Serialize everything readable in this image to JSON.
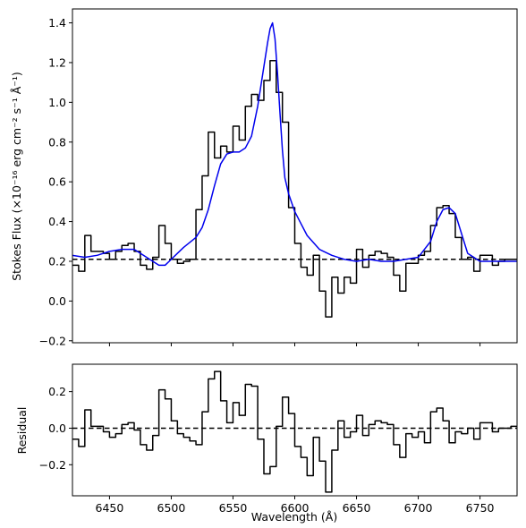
{
  "chart_data": [
    {
      "type": "line",
      "panel": "top",
      "title": "",
      "xlabel": "",
      "ylabel": "Stokes Flux (×10⁻¹⁶ erg cm⁻² s⁻¹ Å⁻¹)",
      "xlim": [
        6420,
        6780
      ],
      "ylim": [
        -0.21,
        1.47
      ],
      "xticks": [
        6450,
        6500,
        6550,
        6600,
        6650,
        6700,
        6750
      ],
      "yticks": [
        -0.2,
        0.0,
        0.2,
        0.4,
        0.6,
        0.8,
        1.0,
        1.2,
        1.4
      ],
      "ytick_labels": [
        "−0.2",
        "0.0",
        "0.2",
        "0.4",
        "0.6",
        "0.8",
        "1.0",
        "1.2",
        "1.4"
      ],
      "grid": false,
      "reference_line": {
        "y": 0.21,
        "style": "dashed",
        "color": "#000000"
      },
      "series": [
        {
          "style": "step",
          "color": "#000000",
          "x": [
            6420,
            6425,
            6430,
            6435,
            6440,
            6445,
            6450,
            6455,
            6460,
            6465,
            6470,
            6475,
            6480,
            6485,
            6490,
            6495,
            6500,
            6505,
            6510,
            6515,
            6520,
            6525,
            6530,
            6535,
            6540,
            6545,
            6550,
            6555,
            6560,
            6565,
            6570,
            6575,
            6580,
            6585,
            6590,
            6595,
            6600,
            6605,
            6610,
            6615,
            6620,
            6625,
            6630,
            6635,
            6640,
            6645,
            6650,
            6655,
            6660,
            6665,
            6670,
            6675,
            6680,
            6685,
            6690,
            6695,
            6700,
            6705,
            6710,
            6715,
            6720,
            6725,
            6730,
            6735,
            6740,
            6745,
            6750,
            6755,
            6760,
            6765,
            6770,
            6775,
            6780
          ],
          "y": [
            0.18,
            0.15,
            0.33,
            0.25,
            0.25,
            0.24,
            0.21,
            0.25,
            0.28,
            0.29,
            0.25,
            0.18,
            0.16,
            0.22,
            0.38,
            0.29,
            0.21,
            0.19,
            0.2,
            0.21,
            0.46,
            0.63,
            0.85,
            0.72,
            0.78,
            0.75,
            0.88,
            0.81,
            0.98,
            1.04,
            1.01,
            1.11,
            1.21,
            1.05,
            0.9,
            0.47,
            0.29,
            0.17,
            0.13,
            0.23,
            0.05,
            -0.08,
            0.12,
            0.04,
            0.12,
            0.09,
            0.26,
            0.17,
            0.23,
            0.25,
            0.24,
            0.22,
            0.13,
            0.05,
            0.19,
            0.19,
            0.23,
            0.25,
            0.38,
            0.47,
            0.48,
            0.44,
            0.32,
            0.21,
            0.22,
            0.15,
            0.23,
            0.23,
            0.18,
            0.2,
            0.21,
            0.21,
            0.21
          ]
        },
        {
          "style": "line",
          "color": "#0000ee",
          "x": [
            6420,
            6430,
            6440,
            6450,
            6460,
            6470,
            6480,
            6490,
            6495,
            6500,
            6505,
            6510,
            6520,
            6525,
            6530,
            6535,
            6540,
            6545,
            6550,
            6555,
            6560,
            6565,
            6570,
            6575,
            6578,
            6580,
            6582,
            6584,
            6586,
            6588,
            6590,
            6592,
            6595,
            6600,
            6605,
            6610,
            6620,
            6630,
            6640,
            6650,
            6660,
            6670,
            6680,
            6690,
            6700,
            6710,
            6715,
            6720,
            6725,
            6730,
            6735,
            6740,
            6750,
            6760,
            6770,
            6780
          ],
          "y": [
            0.23,
            0.22,
            0.23,
            0.25,
            0.26,
            0.26,
            0.22,
            0.18,
            0.18,
            0.21,
            0.24,
            0.27,
            0.32,
            0.37,
            0.46,
            0.58,
            0.69,
            0.74,
            0.75,
            0.75,
            0.77,
            0.83,
            0.98,
            1.18,
            1.3,
            1.37,
            1.4,
            1.32,
            1.15,
            0.95,
            0.76,
            0.62,
            0.54,
            0.45,
            0.39,
            0.33,
            0.26,
            0.23,
            0.21,
            0.2,
            0.21,
            0.2,
            0.2,
            0.21,
            0.22,
            0.3,
            0.4,
            0.46,
            0.47,
            0.44,
            0.34,
            0.24,
            0.2,
            0.2,
            0.2,
            0.2
          ]
        }
      ]
    },
    {
      "type": "line",
      "panel": "bottom",
      "title": "",
      "xlabel": "Wavelength (Å)",
      "ylabel": "Residual",
      "xlim": [
        6420,
        6780
      ],
      "ylim": [
        -0.37,
        0.35
      ],
      "xticks": [
        6450,
        6500,
        6550,
        6600,
        6650,
        6700,
        6750
      ],
      "xtick_labels": [
        "6450",
        "6500",
        "6550",
        "6600",
        "6650",
        "6700",
        "6750"
      ],
      "yticks": [
        -0.2,
        0.0,
        0.2
      ],
      "ytick_labels": [
        "−0.2",
        "0.0",
        "0.2"
      ],
      "grid": false,
      "reference_line": {
        "y": 0.0,
        "style": "dashed",
        "color": "#000000"
      },
      "series": [
        {
          "style": "step",
          "color": "#000000",
          "x": [
            6420,
            6425,
            6430,
            6435,
            6440,
            6445,
            6450,
            6455,
            6460,
            6465,
            6470,
            6475,
            6480,
            6485,
            6490,
            6495,
            6500,
            6505,
            6510,
            6515,
            6520,
            6525,
            6530,
            6535,
            6540,
            6545,
            6550,
            6555,
            6560,
            6565,
            6570,
            6575,
            6580,
            6585,
            6590,
            6595,
            6600,
            6605,
            6610,
            6615,
            6620,
            6625,
            6630,
            6635,
            6640,
            6645,
            6650,
            6655,
            6660,
            6665,
            6670,
            6675,
            6680,
            6685,
            6690,
            6695,
            6700,
            6705,
            6710,
            6715,
            6720,
            6725,
            6730,
            6735,
            6740,
            6745,
            6750,
            6755,
            6760,
            6765,
            6770,
            6775,
            6780
          ],
          "y": [
            -0.06,
            -0.1,
            0.1,
            0.01,
            0.01,
            -0.02,
            -0.05,
            -0.03,
            0.02,
            0.03,
            -0.01,
            -0.09,
            -0.12,
            -0.04,
            0.21,
            0.16,
            0.04,
            -0.03,
            -0.05,
            -0.07,
            -0.09,
            0.09,
            0.27,
            0.31,
            0.15,
            0.03,
            0.14,
            0.07,
            0.24,
            0.23,
            -0.06,
            -0.25,
            -0.21,
            0.01,
            0.17,
            0.08,
            -0.1,
            -0.16,
            -0.26,
            -0.05,
            -0.18,
            -0.35,
            -0.12,
            0.04,
            -0.05,
            -0.02,
            0.07,
            -0.04,
            0.02,
            0.04,
            0.03,
            0.02,
            -0.09,
            -0.16,
            -0.03,
            -0.05,
            -0.02,
            -0.08,
            0.09,
            0.11,
            0.04,
            -0.08,
            -0.02,
            -0.03,
            0.0,
            -0.06,
            0.03,
            0.03,
            -0.02,
            0.0,
            0.0,
            0.01,
            0.01
          ]
        }
      ]
    }
  ]
}
